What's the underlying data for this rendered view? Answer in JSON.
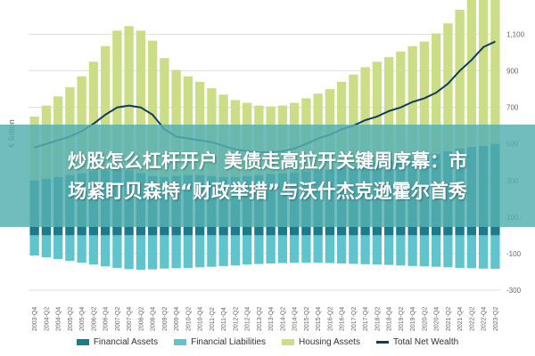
{
  "banner": {
    "line1": "炒股怎么杠杆开户 美债走高拉开关键周序幕：市",
    "line2": "场紧盯贝森特“财政举措”与沃什杰克逊霍尔首秀"
  },
  "colors": {
    "financial_assets": "#1b7a8c",
    "financial_liabilities": "#5fc4cc",
    "housing_assets": "#ccdd88",
    "total_net_wealth": "#0f3d5c",
    "grid": "#d9d9d9",
    "tick_text": "#666666"
  },
  "chart_data": {
    "type": "bar",
    "ylabel": "€ Billion",
    "ylim": [
      -300,
      1200
    ],
    "yticks": [
      -300,
      -100,
      100,
      300,
      500,
      700,
      900,
      1100
    ],
    "ytick_labels": [
      "-300",
      "-100",
      "100",
      "300",
      "500",
      "700",
      "900",
      "1,100"
    ],
    "grid": true,
    "legend_position": "bottom",
    "categories": [
      "2003-Q4",
      "2004-Q2",
      "2004-Q4",
      "2005-Q2",
      "2005-Q4",
      "2006-Q2",
      "2006-Q4",
      "2007-Q2",
      "2007-Q4",
      "2008-Q2",
      "2008-Q4",
      "2009-Q2",
      "2009-Q4",
      "2010-Q2",
      "2010-Q4",
      "2011-Q2",
      "2011-Q4",
      "2012-Q2",
      "2012-Q4",
      "2013-Q2",
      "2013-Q4",
      "2014-Q2",
      "2014-Q4",
      "2015-Q2",
      "2015-Q4",
      "2016-Q2",
      "2016-Q4",
      "2017-Q2",
      "2017-Q4",
      "2018-Q2",
      "2018-Q4",
      "2019-Q2",
      "2019-Q4",
      "2020-Q2",
      "2020-Q4",
      "2021-Q2",
      "2021-Q4",
      "2022-Q2",
      "2022-Q4",
      "2023-Q2"
    ],
    "series": [
      {
        "name": "Financial Assets",
        "values": [
          300,
          310,
          320,
          330,
          340,
          350,
          355,
          360,
          355,
          340,
          325,
          320,
          325,
          330,
          330,
          325,
          320,
          320,
          325,
          330,
          335,
          340,
          345,
          350,
          355,
          360,
          370,
          380,
          390,
          400,
          405,
          415,
          425,
          430,
          445,
          460,
          475,
          485,
          490,
          500
        ]
      },
      {
        "name": "Financial Liabilities",
        "values": [
          -110,
          -120,
          -130,
          -140,
          -150,
          -160,
          -170,
          -178,
          -185,
          -188,
          -186,
          -182,
          -180,
          -178,
          -175,
          -172,
          -168,
          -165,
          -160,
          -157,
          -154,
          -152,
          -150,
          -150,
          -150,
          -152,
          -154,
          -156,
          -158,
          -160,
          -162,
          -165,
          -168,
          -170,
          -172,
          -175,
          -178,
          -180,
          -182,
          -183
        ]
      },
      {
        "name": "Housing Assets",
        "values": [
          350,
          400,
          440,
          480,
          530,
          600,
          680,
          760,
          790,
          780,
          740,
          650,
          580,
          540,
          510,
          480,
          450,
          420,
          400,
          380,
          370,
          370,
          380,
          400,
          420,
          440,
          470,
          500,
          530,
          550,
          570,
          590,
          610,
          630,
          660,
          700,
          760,
          810,
          850,
          860
        ]
      },
      {
        "name": "Total Net Wealth",
        "values": [
          480,
          500,
          520,
          540,
          570,
          610,
          660,
          700,
          710,
          700,
          660,
          580,
          540,
          530,
          520,
          510,
          490,
          470,
          460,
          455,
          455,
          460,
          475,
          500,
          530,
          550,
          580,
          600,
          630,
          650,
          680,
          700,
          730,
          750,
          780,
          830,
          900,
          960,
          1030,
          1060
        ]
      }
    ]
  }
}
